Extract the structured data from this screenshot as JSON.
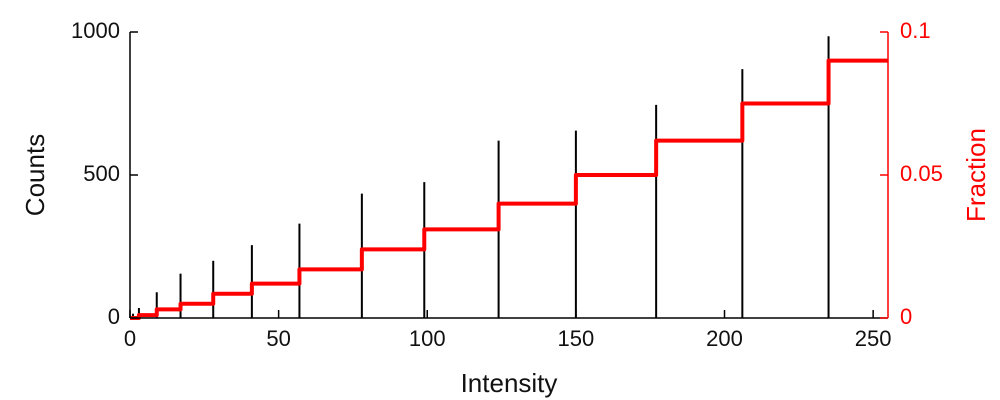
{
  "chart_data": {
    "type": "bar",
    "title": "",
    "xlabel": "Intensity",
    "ylabel": "Counts",
    "ylabel_right": "Fraction",
    "xlim": [
      0,
      255
    ],
    "ylim": [
      0,
      1000
    ],
    "ylim_right": [
      0,
      0.1
    ],
    "x_ticks": [
      0,
      50,
      100,
      150,
      200,
      250
    ],
    "y_ticks": [
      0,
      500,
      1000
    ],
    "y_ticks_right": [
      0,
      0.05,
      0.1
    ],
    "x_tick_labels": [
      "0",
      "50",
      "100",
      "150",
      "200",
      "250"
    ],
    "y_tick_labels": [
      "0",
      "500",
      "1000"
    ],
    "y_tick_labels_right": [
      "0",
      "0.05",
      "0.1"
    ],
    "grid": false,
    "series": [
      {
        "type": "bar",
        "axis": "left",
        "color": "#000000",
        "x": [
          1,
          3,
          9,
          17,
          28,
          41,
          57,
          78,
          99,
          124,
          150,
          177,
          206,
          235
        ],
        "values": [
          15,
          35,
          90,
          155,
          200,
          255,
          330,
          435,
          475,
          620,
          655,
          745,
          870,
          985
        ]
      },
      {
        "type": "step",
        "axis": "right",
        "color": "#ff0000",
        "x": [
          0,
          3,
          9,
          17,
          28,
          41,
          57,
          78,
          99,
          124,
          150,
          177,
          206,
          235,
          255
        ],
        "values": [
          0.0,
          0.001,
          0.003,
          0.005,
          0.0085,
          0.012,
          0.017,
          0.024,
          0.031,
          0.04,
          0.05,
          0.062,
          0.075,
          0.09,
          0.09
        ]
      }
    ]
  }
}
